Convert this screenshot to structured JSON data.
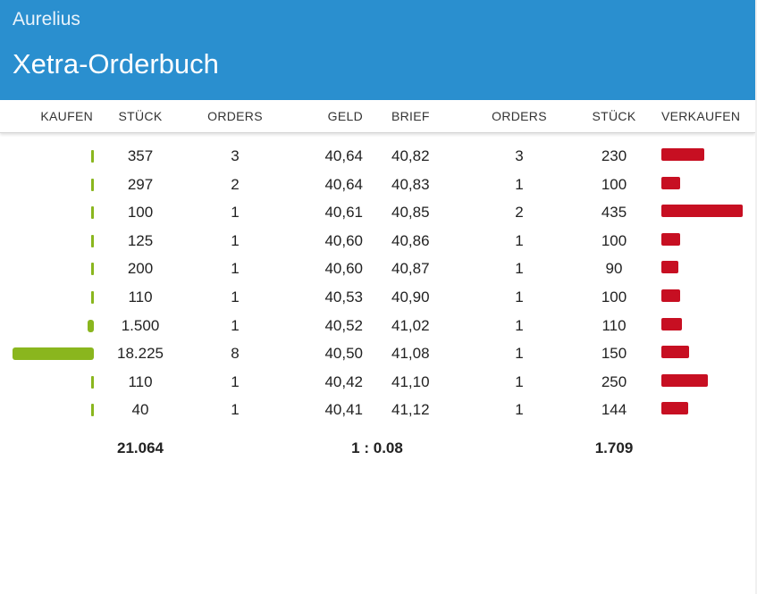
{
  "header": {
    "brand": "Aurelius",
    "title": "Xetra-Orderbuch"
  },
  "columns": {
    "kaufen": "KAUFEN",
    "stueck_buy": "STÜCK",
    "orders_buy": "ORDERS",
    "geld": "GELD",
    "brief": "BRIEF",
    "orders_sell": "ORDERS",
    "stueck_sell": "STÜCK",
    "verkaufen": "VERKAUFEN"
  },
  "colors": {
    "header": "#2a8fcf",
    "buy_bar": "#8ab61e",
    "sell_bar": "#c70f22"
  },
  "rows": [
    {
      "buy_qty": "357",
      "buy_orders": "3",
      "bid": "40,64",
      "ask": "40,82",
      "sell_orders": "3",
      "sell_qty": "230"
    },
    {
      "buy_qty": "297",
      "buy_orders": "2",
      "bid": "40,64",
      "ask": "40,83",
      "sell_orders": "1",
      "sell_qty": "100"
    },
    {
      "buy_qty": "100",
      "buy_orders": "1",
      "bid": "40,61",
      "ask": "40,85",
      "sell_orders": "2",
      "sell_qty": "435"
    },
    {
      "buy_qty": "125",
      "buy_orders": "1",
      "bid": "40,60",
      "ask": "40,86",
      "sell_orders": "1",
      "sell_qty": "100"
    },
    {
      "buy_qty": "200",
      "buy_orders": "1",
      "bid": "40,60",
      "ask": "40,87",
      "sell_orders": "1",
      "sell_qty": "90"
    },
    {
      "buy_qty": "110",
      "buy_orders": "1",
      "bid": "40,53",
      "ask": "40,90",
      "sell_orders": "1",
      "sell_qty": "100"
    },
    {
      "buy_qty": "1.500",
      "buy_orders": "1",
      "bid": "40,52",
      "ask": "41,02",
      "sell_orders": "1",
      "sell_qty": "110"
    },
    {
      "buy_qty": "18.225",
      "buy_orders": "8",
      "bid": "40,50",
      "ask": "41,08",
      "sell_orders": "1",
      "sell_qty": "150"
    },
    {
      "buy_qty": "110",
      "buy_orders": "1",
      "bid": "40,42",
      "ask": "41,10",
      "sell_orders": "1",
      "sell_qty": "250"
    },
    {
      "buy_qty": "40",
      "buy_orders": "1",
      "bid": "40,41",
      "ask": "41,12",
      "sell_orders": "1",
      "sell_qty": "144"
    }
  ],
  "totals": {
    "buy": "21.064",
    "ratio": "1 : 0.08",
    "sell": "1.709"
  }
}
